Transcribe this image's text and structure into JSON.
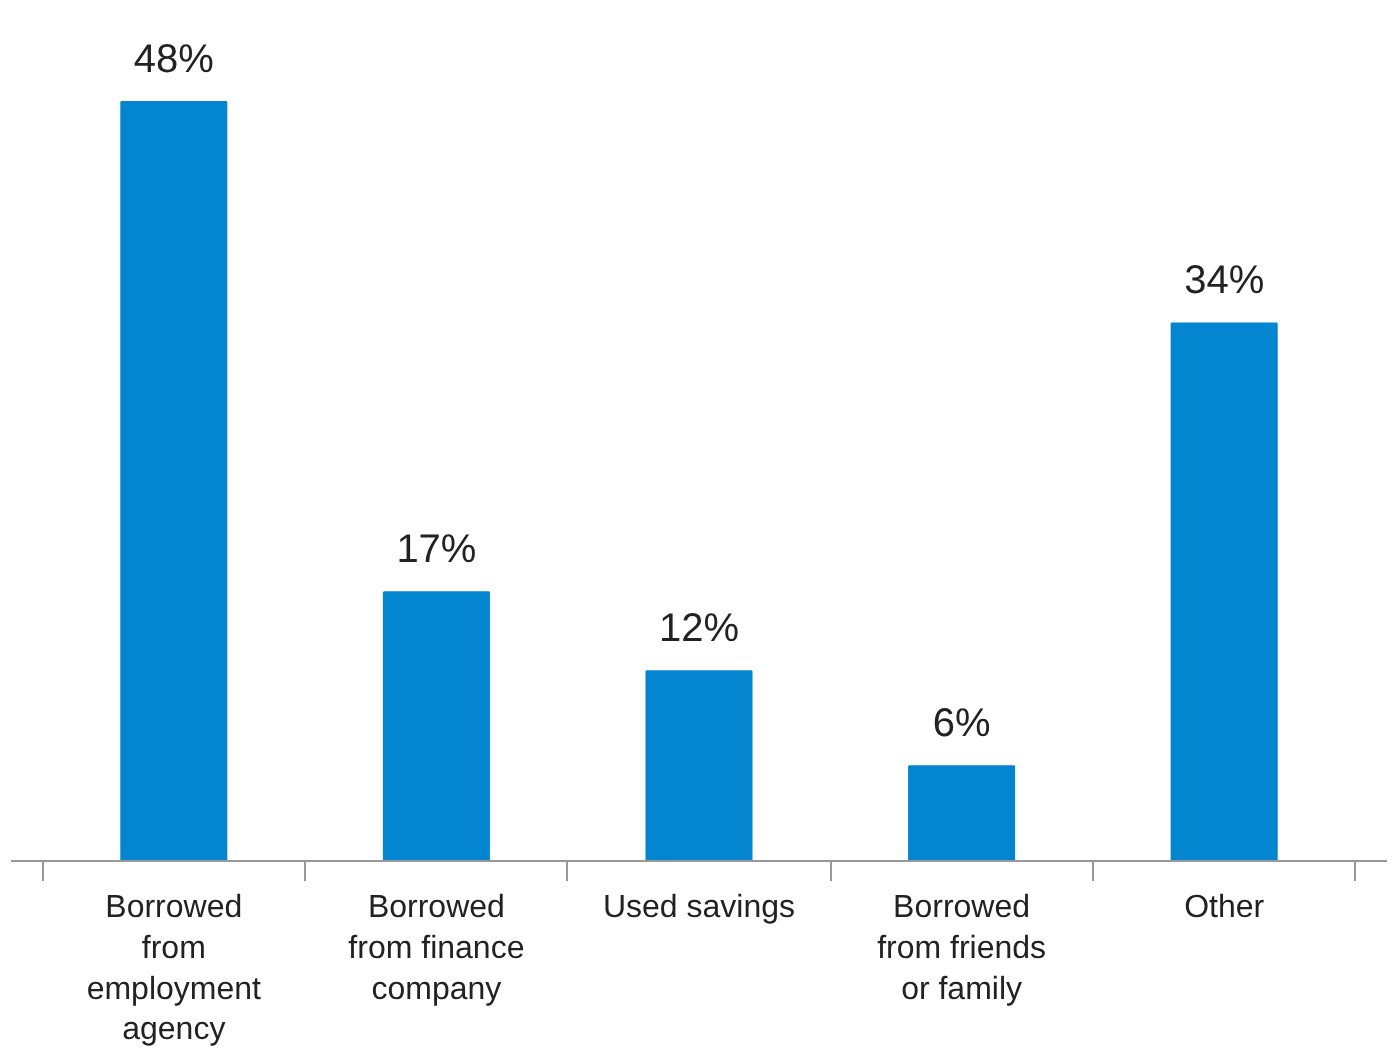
{
  "chart_data": {
    "type": "bar",
    "categories": [
      "Borrowed from employment agency",
      "Borrowed from finance company",
      "Used savings",
      "Borrowed from friends or family",
      "Other"
    ],
    "values": [
      48,
      17,
      12,
      6,
      34
    ],
    "value_labels": [
      "48%",
      "17%",
      "12%",
      "6%",
      "34%"
    ],
    "color": "#0385cf"
  }
}
